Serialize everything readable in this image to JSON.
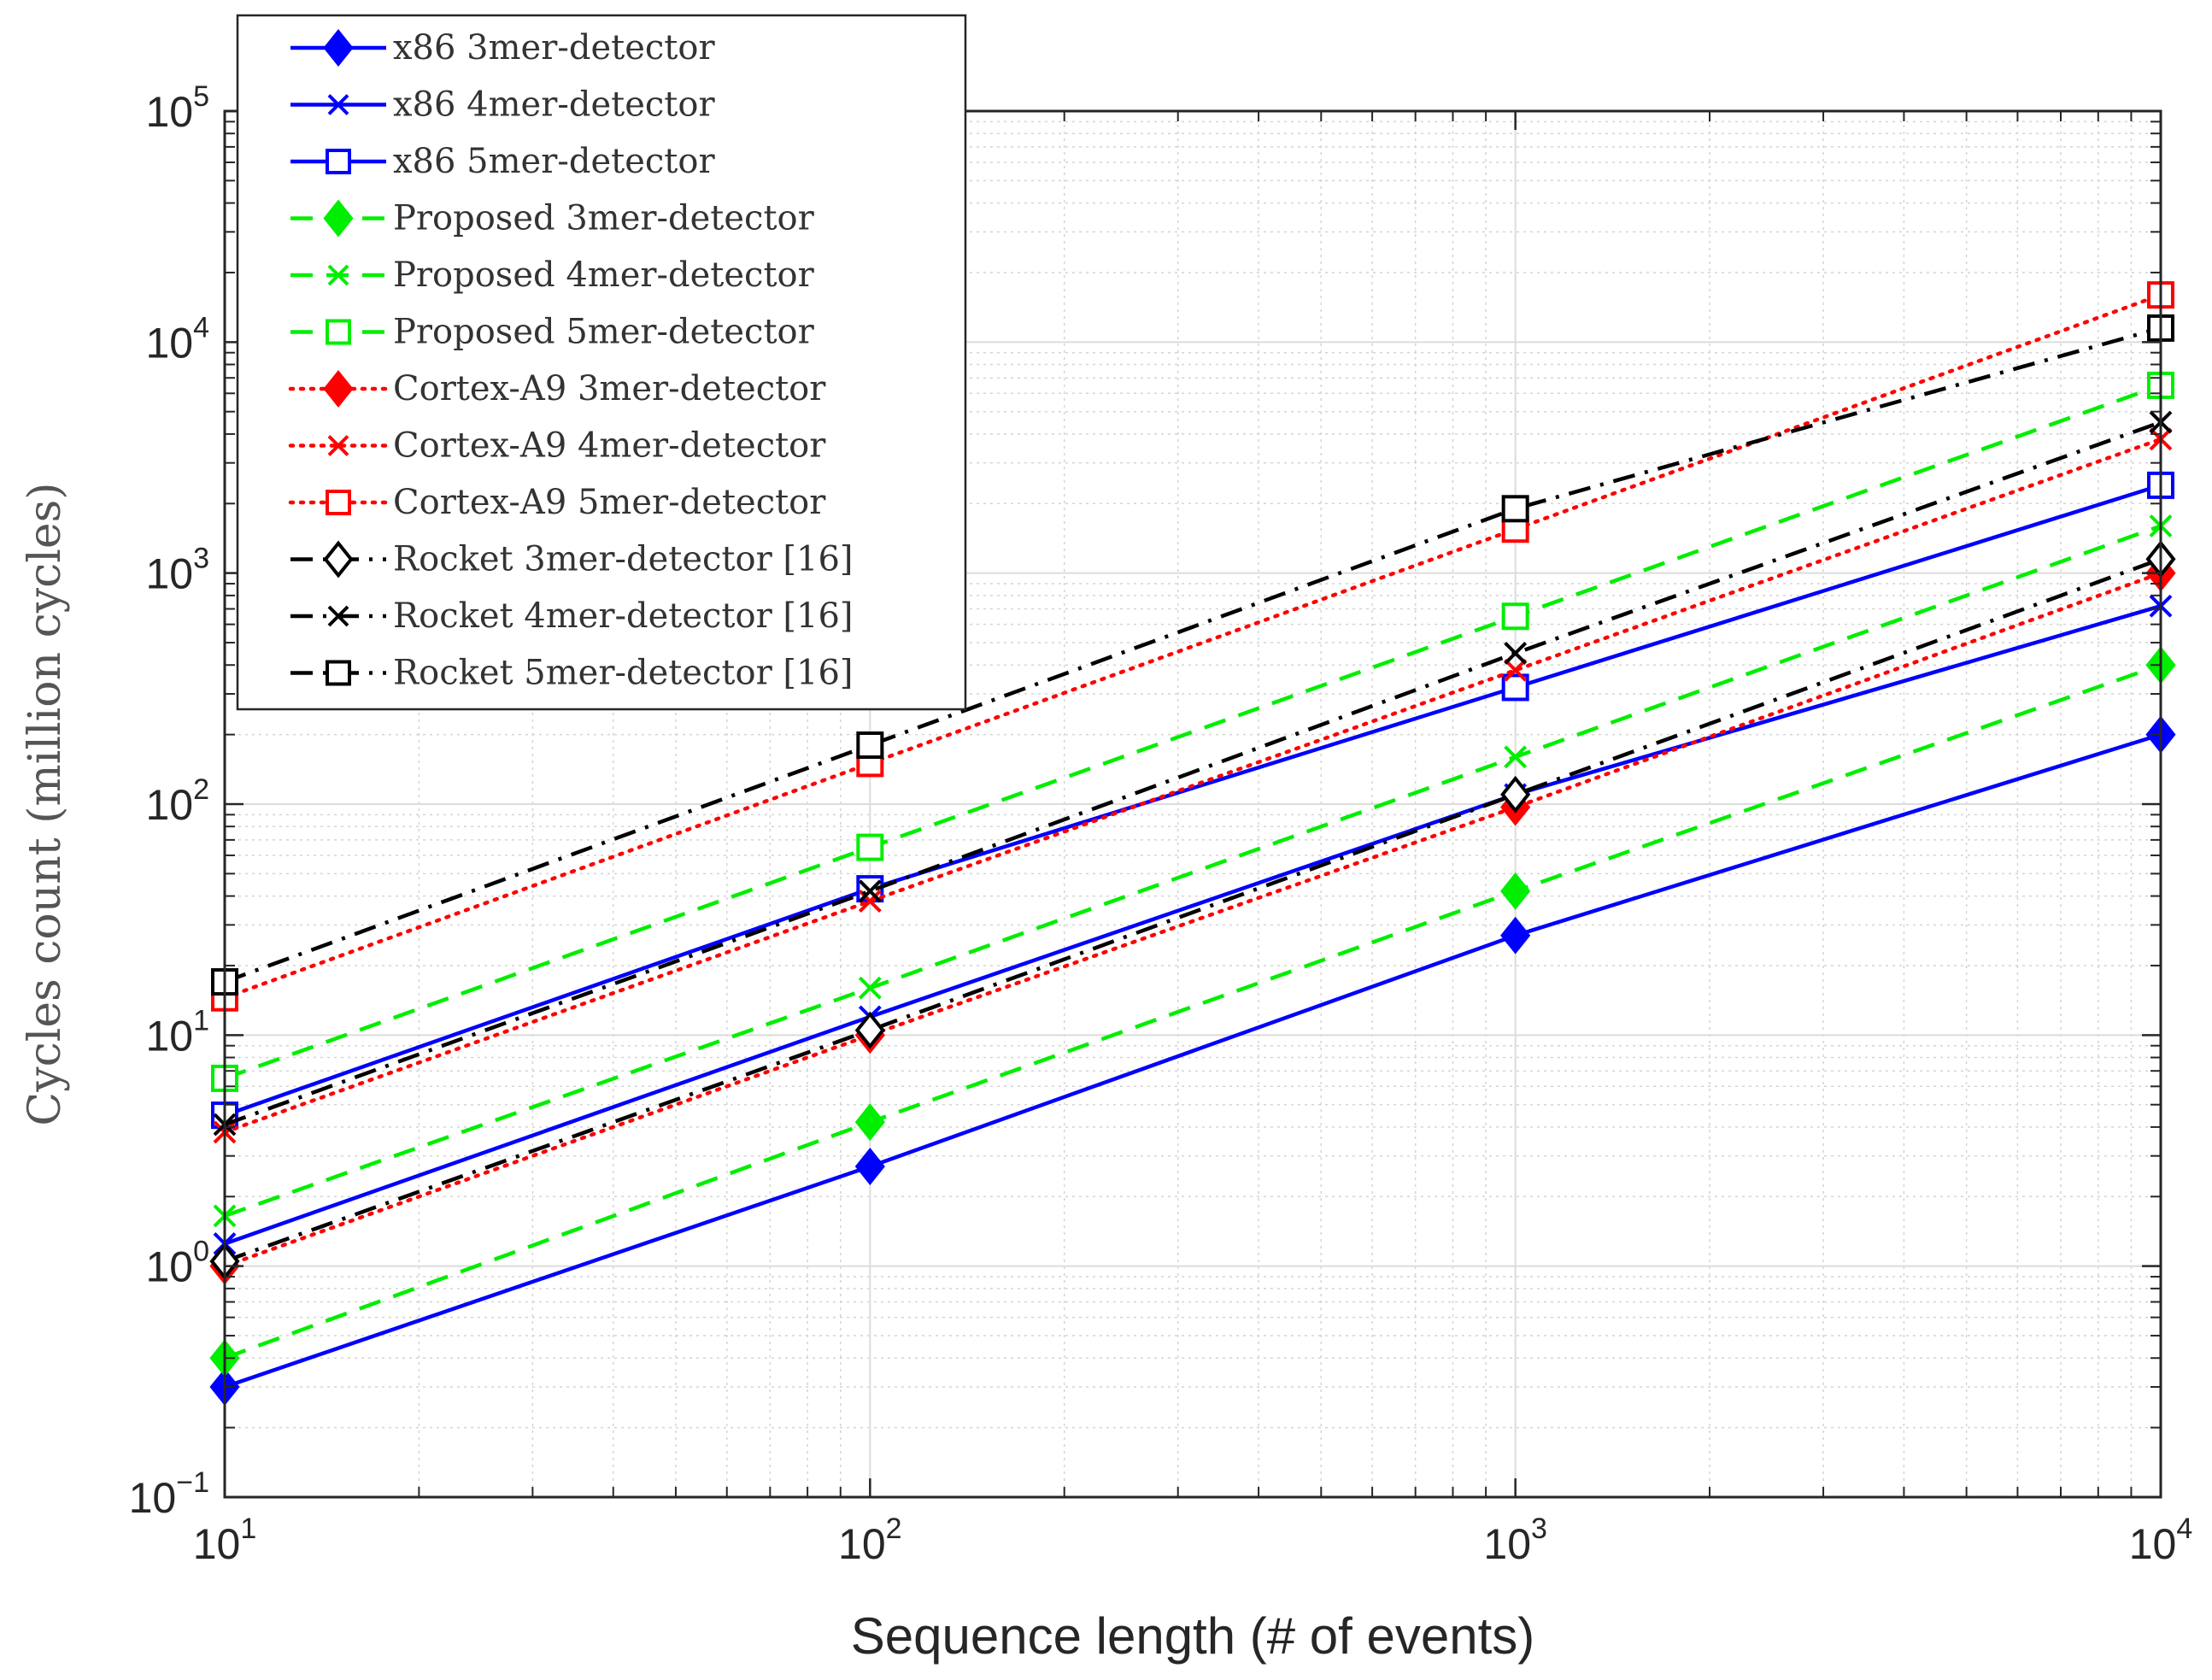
{
  "chart_data": {
    "type": "line",
    "title": "",
    "xlabel": "Sequence length (# of events)",
    "ylabel": "Cycles count (million cycles)",
    "xscale": "log",
    "yscale": "log",
    "xlim": [
      10,
      10000
    ],
    "ylim": [
      0.1,
      100000
    ],
    "x": [
      10,
      100,
      1000,
      10000
    ],
    "x_ticks": [
      {
        "value": 10,
        "base": "10",
        "exp": "1"
      },
      {
        "value": 100,
        "base": "10",
        "exp": "2"
      },
      {
        "value": 1000,
        "base": "10",
        "exp": "3"
      },
      {
        "value": 10000,
        "base": "10",
        "exp": "4"
      }
    ],
    "y_ticks": [
      {
        "value": 0.1,
        "base": "10",
        "exp": "−1"
      },
      {
        "value": 1,
        "base": "10",
        "exp": "0"
      },
      {
        "value": 10,
        "base": "10",
        "exp": "1"
      },
      {
        "value": 100,
        "base": "10",
        "exp": "2"
      },
      {
        "value": 1000,
        "base": "10",
        "exp": "3"
      },
      {
        "value": 10000,
        "base": "10",
        "exp": "4"
      },
      {
        "value": 100000,
        "base": "10",
        "exp": "5"
      }
    ],
    "grid": true,
    "legend_position": "top-left",
    "series": [
      {
        "name": "x86 3mer-detector",
        "color": "#0000ff",
        "dash": "solid",
        "marker": "diamond",
        "filled": true,
        "values": [
          0.3,
          2.7,
          27,
          200
        ]
      },
      {
        "name": "x86 4mer-detector",
        "color": "#0000ff",
        "dash": "solid",
        "marker": "x",
        "filled": false,
        "values": [
          1.25,
          12,
          110,
          720
        ]
      },
      {
        "name": "x86 5mer-detector",
        "color": "#0000ff",
        "dash": "solid",
        "marker": "square",
        "filled": false,
        "values": [
          4.5,
          43,
          320,
          2400
        ]
      },
      {
        "name": "Proposed 3mer-detector",
        "color": "#00ee00",
        "dash": "dashed",
        "marker": "diamond",
        "filled": true,
        "values": [
          0.4,
          4.2,
          42,
          400
        ]
      },
      {
        "name": "Proposed 4mer-detector",
        "color": "#00ee00",
        "dash": "dashed",
        "marker": "x",
        "filled": false,
        "values": [
          1.65,
          16,
          160,
          1600
        ]
      },
      {
        "name": "Proposed 5mer-detector",
        "color": "#00ee00",
        "dash": "dashed",
        "marker": "square",
        "filled": false,
        "values": [
          6.5,
          65,
          650,
          6500
        ]
      },
      {
        "name": "Cortex-A9 3mer-detector",
        "color": "#ff0000",
        "dash": "dotted",
        "marker": "diamond",
        "filled": true,
        "values": [
          1.0,
          10,
          97,
          1000
        ]
      },
      {
        "name": "Cortex-A9 4mer-detector",
        "color": "#ff0000",
        "dash": "dotted",
        "marker": "x",
        "filled": false,
        "values": [
          3.8,
          38,
          380,
          3800
        ]
      },
      {
        "name": "Cortex-A9 5mer-detector",
        "color": "#ff0000",
        "dash": "dotted",
        "marker": "square",
        "filled": false,
        "values": [
          14.5,
          150,
          1550,
          16000
        ]
      },
      {
        "name": "Rocket 3mer-detector [16]",
        "color": "#000000",
        "dash": "dashdot",
        "marker": "diamond",
        "filled": false,
        "values": [
          1.05,
          10.5,
          110,
          1150
        ]
      },
      {
        "name": "Rocket 4mer-detector [16]",
        "color": "#000000",
        "dash": "dashdot",
        "marker": "x",
        "filled": false,
        "values": [
          4.1,
          42,
          450,
          4500
        ]
      },
      {
        "name": "Rocket 5mer-detector [16]",
        "color": "#000000",
        "dash": "dashdot",
        "marker": "square",
        "filled": false,
        "values": [
          17,
          180,
          1900,
          11500
        ]
      }
    ]
  }
}
